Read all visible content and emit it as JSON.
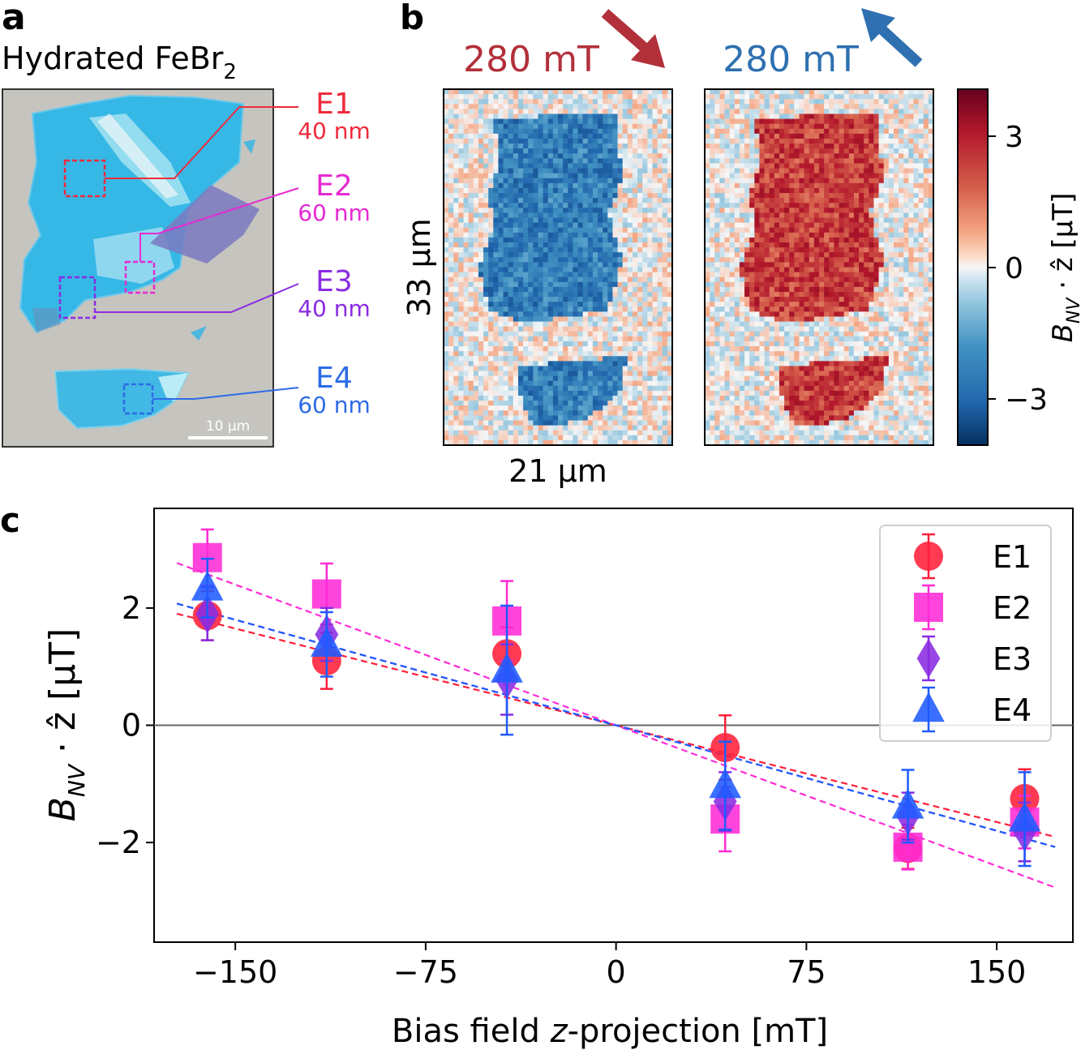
{
  "panel_a": {
    "label": "a",
    "title_main": "Hydrated FeBr",
    "title_sub": "2",
    "scalebar_text": "10 µm",
    "regions": [
      {
        "name": "E1",
        "thickness": "40 nm",
        "color": "#f02a3c"
      },
      {
        "name": "E2",
        "thickness": "60 nm",
        "color": "#e62ad2"
      },
      {
        "name": "E3",
        "thickness": "40 nm",
        "color": "#8a2be2"
      },
      {
        "name": "E4",
        "thickness": "60 nm",
        "color": "#2d6be6"
      }
    ]
  },
  "panel_b": {
    "label": "b",
    "left_field": "280 mT",
    "left_color": "#b2303a",
    "right_field": "280 mT",
    "right_color": "#2f70b0",
    "height_label": "33 µm",
    "width_label": "21 µm",
    "colorbar_label_italic": "B",
    "colorbar_label_sub": "NV",
    "colorbar_label_rest": " · ẑ [μT]",
    "colorbar_ticks": [
      "3",
      "0",
      "−3"
    ]
  },
  "panel_c": {
    "label": "c",
    "xlabel_a": "Bias field ",
    "xlabel_italic": "z",
    "xlabel_b": "-projection [mT]",
    "ylabel_b": "B",
    "ylabel_sub": "NV",
    "ylabel_rest": " · ẑ [μT]"
  },
  "chart_data": {
    "type": "scatter",
    "title": "",
    "xlabel": "Bias field z-projection [mT]",
    "ylabel": "B_NV · ẑ [μT]",
    "xlim": [
      -182,
      180
    ],
    "ylim": [
      -3.7,
      3.7
    ],
    "xticks": [
      -150,
      -75,
      0,
      75,
      150
    ],
    "xtick_labels": [
      "−150",
      "−75",
      "0",
      "75",
      "150"
    ],
    "yticks": [
      2,
      0,
      -2
    ],
    "ytick_labels": [
      "2",
      "0",
      "−2"
    ],
    "legend_position": "top-right",
    "x": [
      -161,
      -114,
      -43,
      43,
      115,
      161
    ],
    "series": [
      {
        "name": "E1",
        "marker": "circle",
        "color": "#ff1f3a",
        "values": [
          1.87,
          1.1,
          1.22,
          -0.38,
          -2.1,
          -1.25
        ],
        "errors": [
          0.42,
          0.48,
          0.45,
          0.55,
          0.35,
          0.5
        ],
        "fit_slope": -0.011
      },
      {
        "name": "E2",
        "marker": "square",
        "color": "#ff2bd6",
        "values": [
          2.86,
          2.24,
          1.78,
          -1.6,
          -2.08,
          -1.65
        ],
        "errors": [
          0.48,
          0.52,
          0.68,
          0.55,
          0.38,
          0.45
        ],
        "fit_slope": -0.016
      },
      {
        "name": "E3",
        "marker": "diamond",
        "color": "#8a2be2",
        "values": [
          1.9,
          1.55,
          0.78,
          -1.3,
          -1.55,
          -1.82
        ],
        "errors": [
          0.45,
          0.45,
          0.6,
          0.5,
          0.4,
          0.5
        ],
        "fit_slope": -0.012
      },
      {
        "name": "E4",
        "marker": "triangle",
        "color": "#1f5bff",
        "values": [
          2.34,
          1.38,
          0.94,
          -1.03,
          -1.38,
          -1.6
        ],
        "errors": [
          0.5,
          0.55,
          1.1,
          0.75,
          0.62,
          0.8
        ],
        "fit_slope": -0.012
      }
    ]
  }
}
